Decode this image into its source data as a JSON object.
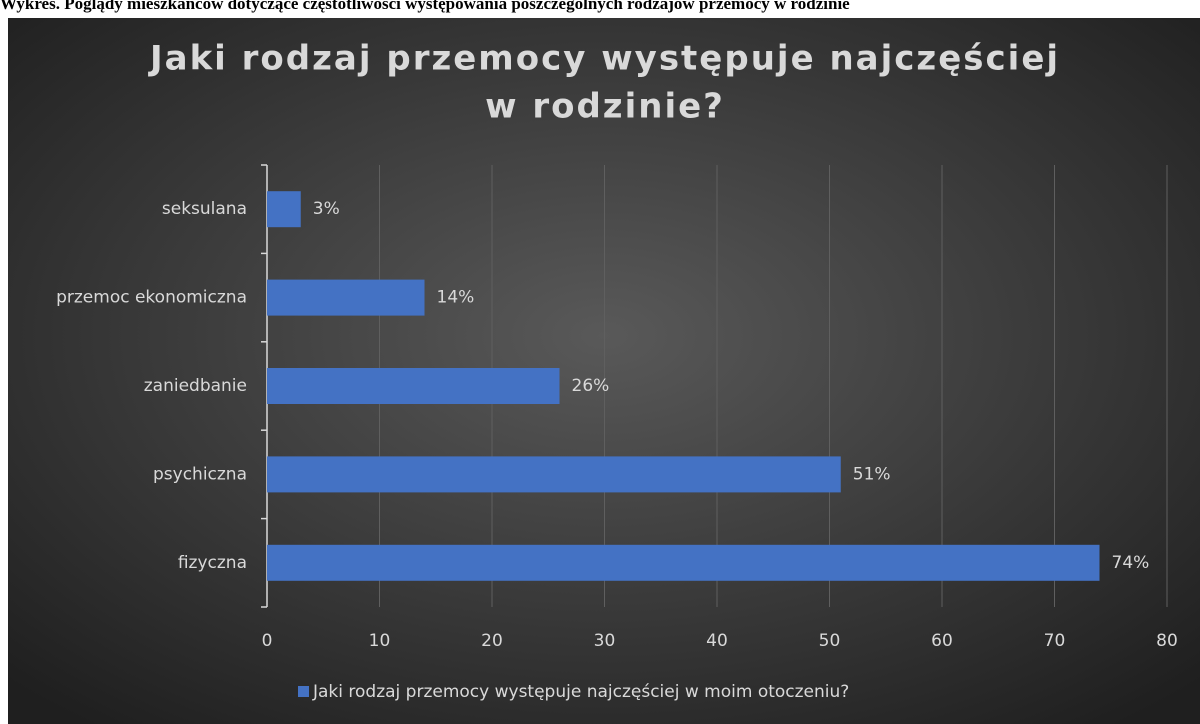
{
  "caption": "Wykres. Poglądy mieszkańców dotyczące częstotliwości występowania poszczególnych rodzajów przemocy w rodzinie",
  "chart_data": {
    "type": "bar",
    "orientation": "horizontal",
    "title": [
      "Jaki rodzaj przemocy występuje najczęściej",
      "w rodzinie?"
    ],
    "categories": [
      "seksulana",
      "przemoc ekonomiczna",
      "zaniedbanie",
      "psychiczna",
      "fizyczna"
    ],
    "series": [
      {
        "name": "Jaki rodzaj przemocy występuje najczęściej w moim otoczeniu?",
        "color": "#4472c4",
        "values": [
          3,
          14,
          26,
          51,
          74
        ],
        "value_labels": [
          "3%",
          "14%",
          "26%",
          "51%",
          "74%"
        ]
      }
    ],
    "xlim": [
      0,
      80
    ],
    "xticks": [
      0,
      10,
      20,
      30,
      40,
      50,
      60,
      70,
      80
    ],
    "grid": true,
    "legend": "bottom"
  }
}
